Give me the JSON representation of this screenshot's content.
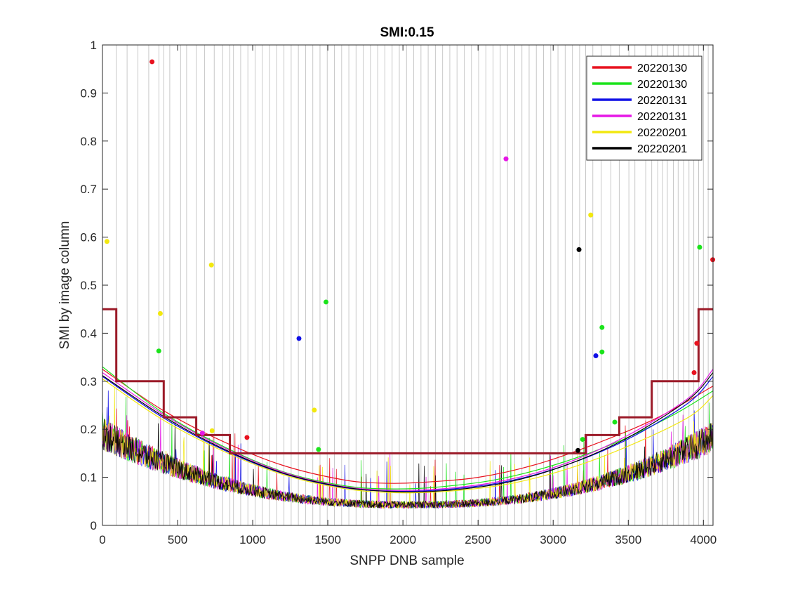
{
  "chart_data": {
    "type": "line",
    "title": "SMI:0.15",
    "xlabel": "SNPP DNB sample",
    "ylabel": "SMI by image column",
    "xlim": [
      0,
      4064
    ],
    "ylim": [
      0,
      1
    ],
    "xticks": [
      "0",
      "500",
      "1000",
      "1500",
      "2000",
      "2500",
      "3000",
      "3500",
      "4000"
    ],
    "yticks": [
      "0",
      "0.1",
      "0.2",
      "0.3",
      "0.4",
      "0.5",
      "0.6",
      "0.7",
      "0.8",
      "0.9",
      "1"
    ],
    "xtick_values": [
      0,
      500,
      1000,
      1500,
      2000,
      2500,
      3000,
      3500,
      4000
    ],
    "ytick_values": [
      0,
      0.1,
      0.2,
      0.3,
      0.4,
      0.5,
      0.6,
      0.7,
      0.8,
      0.9,
      1
    ],
    "grid": false,
    "legend_position": "top-right",
    "threshold_color": "#9b1a28",
    "threshold": [
      [
        0,
        0.45
      ],
      [
        92,
        0.45
      ],
      [
        92,
        0.3
      ],
      [
        408,
        0.3
      ],
      [
        408,
        0.225
      ],
      [
        624,
        0.225
      ],
      [
        624,
        0.188
      ],
      [
        848,
        0.188
      ],
      [
        848,
        0.15
      ],
      [
        3216,
        0.15
      ],
      [
        3216,
        0.188
      ],
      [
        3440,
        0.188
      ],
      [
        3440,
        0.225
      ],
      [
        3656,
        0.225
      ],
      [
        3656,
        0.3
      ],
      [
        3968,
        0.3
      ],
      [
        3968,
        0.45
      ],
      [
        4064,
        0.45
      ]
    ],
    "aggregation_zone_boundaries": [
      92,
      164,
      236,
      308,
      376,
      408,
      448,
      520,
      560,
      624,
      680,
      744,
      800,
      848,
      872,
      920,
      968,
      1016,
      1064,
      1112,
      1160,
      1208,
      1256,
      1304,
      1352,
      1400,
      1448,
      1496,
      1544,
      1592,
      1640,
      1688,
      1736,
      1784,
      1832,
      1880,
      1928,
      1976,
      2024,
      2072,
      2120,
      2168,
      2216,
      2264,
      2312,
      2360,
      2408,
      2456,
      2504,
      2552,
      2600,
      2648,
      2696,
      2744,
      2792,
      2840,
      2888,
      2936,
      2984,
      3032,
      3080,
      3128,
      3176,
      3216,
      3264,
      3320,
      3384,
      3440,
      3504,
      3544,
      3616,
      3656,
      3696,
      3728,
      3760,
      3800,
      3832,
      3868,
      3904,
      3936,
      3968,
      4000,
      4032
    ],
    "series": [
      {
        "name": "20220130",
        "color": "#e8121f",
        "fit": [
          [
            0,
            0.325
          ],
          [
            400,
            0.24
          ],
          [
            800,
            0.175
          ],
          [
            1200,
            0.125
          ],
          [
            1600,
            0.095
          ],
          [
            1850,
            0.088
          ],
          [
            2100,
            0.089
          ],
          [
            2500,
            0.1
          ],
          [
            2900,
            0.128
          ],
          [
            3300,
            0.172
          ],
          [
            3700,
            0.225
          ],
          [
            4064,
            0.29
          ]
        ]
      },
      {
        "name": "20220130",
        "color": "#1be31b",
        "fit": [
          [
            0,
            0.33
          ],
          [
            400,
            0.235
          ],
          [
            800,
            0.165
          ],
          [
            1200,
            0.112
          ],
          [
            1600,
            0.083
          ],
          [
            1900,
            0.076
          ],
          [
            2200,
            0.079
          ],
          [
            2600,
            0.094
          ],
          [
            3000,
            0.125
          ],
          [
            3400,
            0.17
          ],
          [
            3800,
            0.23
          ],
          [
            4064,
            0.28
          ]
        ]
      },
      {
        "name": "20220131",
        "color": "#1010e6",
        "fit": [
          [
            0,
            0.31
          ],
          [
            400,
            0.225
          ],
          [
            800,
            0.158
          ],
          [
            1200,
            0.108
          ],
          [
            1600,
            0.079
          ],
          [
            1950,
            0.071
          ],
          [
            2300,
            0.075
          ],
          [
            2700,
            0.092
          ],
          [
            3100,
            0.127
          ],
          [
            3500,
            0.18
          ],
          [
            3900,
            0.255
          ],
          [
            4064,
            0.31
          ]
        ]
      },
      {
        "name": "20220131",
        "color": "#e617e6",
        "fit": [
          [
            0,
            0.318
          ],
          [
            400,
            0.232
          ],
          [
            800,
            0.163
          ],
          [
            1200,
            0.111
          ],
          [
            1600,
            0.081
          ],
          [
            1950,
            0.073
          ],
          [
            2300,
            0.077
          ],
          [
            2700,
            0.095
          ],
          [
            3100,
            0.131
          ],
          [
            3500,
            0.188
          ],
          [
            3900,
            0.265
          ],
          [
            4064,
            0.325
          ]
        ]
      },
      {
        "name": "20220201",
        "color": "#f2e80f",
        "fit": [
          [
            0,
            0.305
          ],
          [
            400,
            0.22
          ],
          [
            800,
            0.155
          ],
          [
            1200,
            0.106
          ],
          [
            1600,
            0.077
          ],
          [
            1950,
            0.068
          ],
          [
            2300,
            0.071
          ],
          [
            2700,
            0.086
          ],
          [
            3100,
            0.118
          ],
          [
            3500,
            0.165
          ],
          [
            3900,
            0.225
          ],
          [
            4064,
            0.27
          ]
        ]
      },
      {
        "name": "20220201",
        "color": "#000000",
        "fit": [
          [
            0,
            0.312
          ],
          [
            400,
            0.228
          ],
          [
            800,
            0.16
          ],
          [
            1200,
            0.109
          ],
          [
            1600,
            0.08
          ],
          [
            1950,
            0.07
          ],
          [
            2300,
            0.073
          ],
          [
            2700,
            0.09
          ],
          [
            3100,
            0.127
          ],
          [
            3500,
            0.183
          ],
          [
            3900,
            0.262
          ],
          [
            4064,
            0.318
          ]
        ]
      }
    ],
    "outliers": [
      {
        "series": 0,
        "x": 330,
        "y": 0.965
      },
      {
        "series": 0,
        "x": 962,
        "y": 0.183
      },
      {
        "series": 0,
        "x": 3938,
        "y": 0.318
      },
      {
        "series": 0,
        "x": 3956,
        "y": 0.379
      },
      {
        "series": 0,
        "x": 4062,
        "y": 0.553
      },
      {
        "series": 1,
        "x": 375,
        "y": 0.363
      },
      {
        "series": 1,
        "x": 1438,
        "y": 0.158
      },
      {
        "series": 1,
        "x": 1488,
        "y": 0.465
      },
      {
        "series": 1,
        "x": 3196,
        "y": 0.179
      },
      {
        "series": 1,
        "x": 3325,
        "y": 0.412
      },
      {
        "series": 1,
        "x": 3325,
        "y": 0.361
      },
      {
        "series": 1,
        "x": 3410,
        "y": 0.215
      },
      {
        "series": 1,
        "x": 3975,
        "y": 0.579
      },
      {
        "series": 2,
        "x": 1308,
        "y": 0.389
      },
      {
        "series": 2,
        "x": 3284,
        "y": 0.353
      },
      {
        "series": 3,
        "x": 665,
        "y": 0.192
      },
      {
        "series": 3,
        "x": 2686,
        "y": 0.763
      },
      {
        "series": 4,
        "x": 30,
        "y": 0.591
      },
      {
        "series": 4,
        "x": 385,
        "y": 0.441
      },
      {
        "series": 4,
        "x": 725,
        "y": 0.542
      },
      {
        "series": 4,
        "x": 730,
        "y": 0.197
      },
      {
        "series": 4,
        "x": 1410,
        "y": 0.24
      },
      {
        "series": 4,
        "x": 3250,
        "y": 0.646
      },
      {
        "series": 5,
        "x": 3172,
        "y": 0.574
      },
      {
        "series": 5,
        "x": 3165,
        "y": 0.156
      }
    ]
  }
}
